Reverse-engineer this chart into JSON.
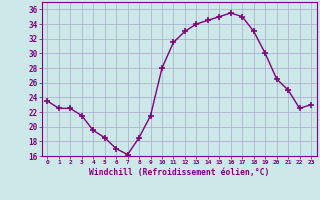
{
  "x": [
    0,
    1,
    2,
    3,
    4,
    5,
    6,
    7,
    8,
    9,
    10,
    11,
    12,
    13,
    14,
    15,
    16,
    17,
    18,
    19,
    20,
    21,
    22,
    23
  ],
  "y": [
    23.5,
    22.5,
    22.5,
    21.5,
    19.5,
    18.5,
    17.0,
    16.2,
    18.5,
    21.5,
    28.0,
    31.5,
    33.0,
    34.0,
    34.5,
    35.0,
    35.5,
    35.0,
    33.0,
    30.0,
    26.5,
    25.0,
    22.5,
    23.0
  ],
  "line_color": "#800080",
  "marker": "+",
  "marker_size": 4,
  "bg_color": "#cce8e8",
  "grid_color": "#aaaacc",
  "xlabel": "Windchill (Refroidissement éolien,°C)",
  "xlabel_color": "#800080",
  "tick_color": "#800080",
  "ylim": [
    16,
    37
  ],
  "xlim": [
    -0.5,
    23.5
  ],
  "yticks": [
    16,
    18,
    20,
    22,
    24,
    26,
    28,
    30,
    32,
    34,
    36
  ],
  "xticks": [
    0,
    1,
    2,
    3,
    4,
    5,
    6,
    7,
    8,
    9,
    10,
    11,
    12,
    13,
    14,
    15,
    16,
    17,
    18,
    19,
    20,
    21,
    22,
    23
  ],
  "xtick_labels": [
    "0",
    "1",
    "2",
    "3",
    "4",
    "5",
    "6",
    "7",
    "8",
    "9",
    "10",
    "11",
    "12",
    "13",
    "14",
    "15",
    "16",
    "17",
    "18",
    "19",
    "20",
    "21",
    "22",
    "23"
  ],
  "ytick_labels": [
    "16",
    "18",
    "20",
    "22",
    "24",
    "26",
    "28",
    "30",
    "32",
    "34",
    "36"
  ]
}
